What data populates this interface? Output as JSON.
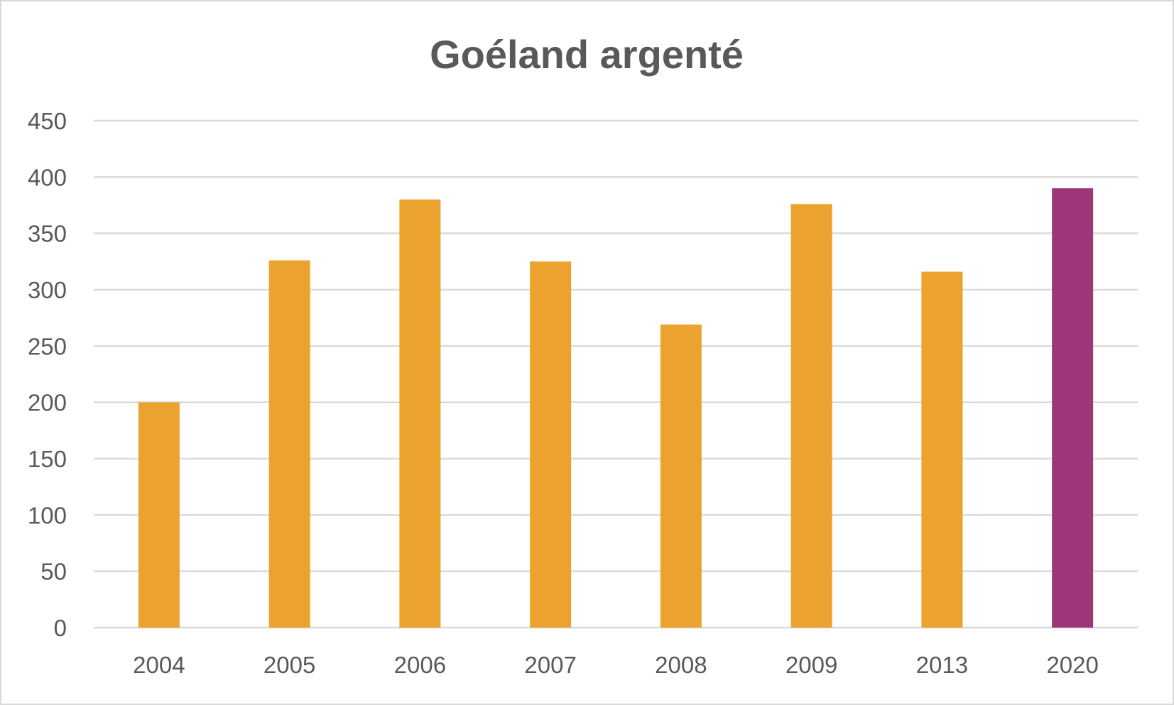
{
  "chart_data": {
    "type": "bar",
    "title": "Goéland argenté",
    "xlabel": "",
    "ylabel": "",
    "categories": [
      "2004",
      "2005",
      "2006",
      "2007",
      "2008",
      "2009",
      "2013",
      "2020"
    ],
    "values": [
      200,
      326,
      380,
      325,
      269,
      376,
      316,
      390
    ],
    "ylim": [
      0,
      450
    ],
    "yticks": [
      0,
      50,
      100,
      150,
      200,
      250,
      300,
      350,
      400,
      450
    ],
    "grid": true,
    "legend": "none",
    "colors": {
      "default": "#eba22f",
      "highlight": "#9d367b",
      "highlight_category": "2020"
    }
  }
}
